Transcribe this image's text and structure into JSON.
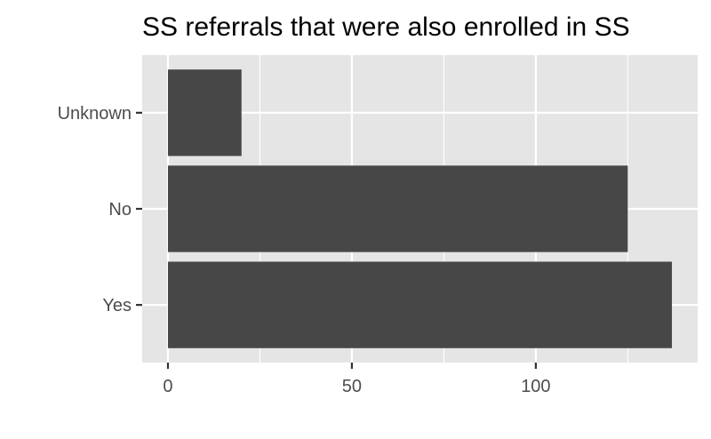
{
  "chart_data": {
    "type": "bar",
    "orientation": "horizontal",
    "title": "SS referrals that were also enrolled in SS",
    "xlabel": "",
    "ylabel": "",
    "categories": [
      "Yes",
      "No",
      "Unknown"
    ],
    "values": [
      137,
      125,
      20
    ],
    "xlim": [
      -7,
      144
    ],
    "x_ticks": [
      0,
      50,
      100
    ],
    "x_tick_labels": [
      "0",
      "50",
      "100"
    ],
    "x_minor_ticks": [
      25,
      75,
      125
    ],
    "grid": true,
    "legend": "none",
    "colors": {
      "bar": "#474747",
      "panel": "#e5e5e5",
      "grid": "#ffffff",
      "tick_text": "#4d4d4d",
      "tick_mark": "#333333",
      "title": "#000000"
    }
  }
}
